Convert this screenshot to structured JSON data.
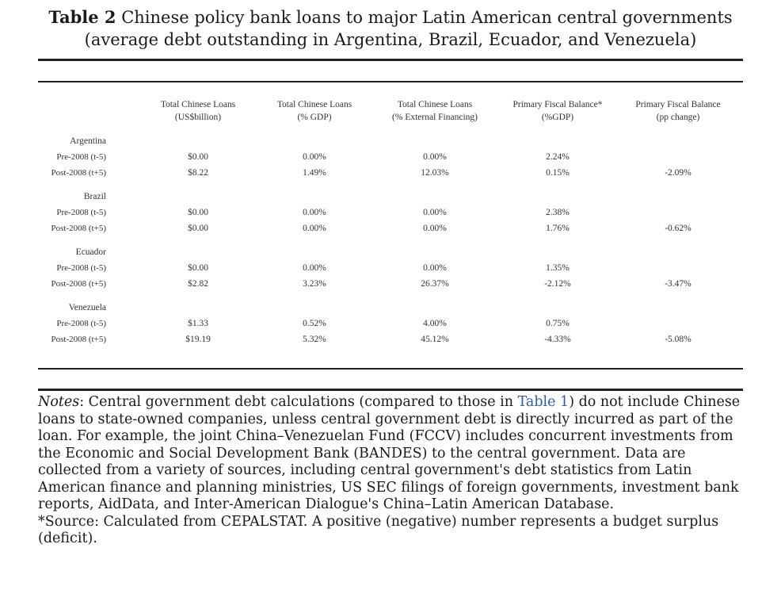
{
  "title": {
    "label": "Table 2",
    "line1": "Chinese policy bank loans to major Latin American central governments",
    "line2": "(average debt outstanding in Argentina, Brazil, Ecuador, and Venezuela)"
  },
  "table": {
    "headers": [
      {
        "line1": "Total Chinese Loans",
        "line2": "(US$billion)"
      },
      {
        "line1": "Total Chinese Loans",
        "line2": "(% GDP)"
      },
      {
        "line1": "Total Chinese Loans",
        "line2": "(% External Financing)"
      },
      {
        "line1": "Primary Fiscal Balance*",
        "line2": "(%GDP)"
      },
      {
        "line1": "Primary Fiscal Balance",
        "line2": "(pp change)"
      }
    ],
    "groups": [
      {
        "name": "Argentina",
        "rows": [
          {
            "label": "Pre-2008 (t-5)",
            "cells": [
              "$0.00",
              "0.00%",
              "0.00%",
              "2.24%",
              ""
            ]
          },
          {
            "label": "Post-2008 (t+5)",
            "cells": [
              "$8.22",
              "1.49%",
              "12.03%",
              "0.15%",
              "-2.09%"
            ]
          }
        ]
      },
      {
        "name": "Brazil",
        "rows": [
          {
            "label": "Pre-2008 (t-5)",
            "cells": [
              "$0.00",
              "0.00%",
              "0.00%",
              "2.38%",
              ""
            ]
          },
          {
            "label": "Post-2008 (t+5)",
            "cells": [
              "$0.00",
              "0.00%",
              "0.00%",
              "1.76%",
              "-0.62%"
            ]
          }
        ]
      },
      {
        "name": "Ecuador",
        "rows": [
          {
            "label": "Pre-2008 (t-5)",
            "cells": [
              "$0.00",
              "0.00%",
              "0.00%",
              "1.35%",
              ""
            ]
          },
          {
            "label": "Post-2008 (t+5)",
            "cells": [
              "$2.82",
              "3.23%",
              "26.37%",
              "-2.12%",
              "-3.47%"
            ]
          }
        ]
      },
      {
        "name": "Venezuela",
        "rows": [
          {
            "label": "Pre-2008 (t-5)",
            "cells": [
              "$1.33",
              "0.52%",
              "4.00%",
              "0.75%",
              ""
            ]
          },
          {
            "label": "Post-2008 (t+5)",
            "cells": [
              "$19.19",
              "5.32%",
              "45.12%",
              "-4.33%",
              "-5.08%"
            ]
          }
        ]
      }
    ]
  },
  "notes": {
    "label": "Notes",
    "text_before_link": ": Central government debt calculations (compared to those in ",
    "link_text": "Table 1",
    "text_after_link": ") do not include Chinese loans to state-owned companies, unless central government debt is directly incurred as part of the loan. For example, the joint China–Venezuelan Fund (FCCV) includes concurrent investments from the Economic and Social Development Bank (BANDES) to the central government. Data are collected from a variety of sources, including central government's debt statistics from Latin American finance and planning ministries, US SEC filings of foreign governments, investment bank reports, AidData, and Inter-American Dialogue's China–Latin American Database.",
    "source": "*Source: Calculated from CEPALSTAT. A positive (negative) number represents a budget surplus (deficit)."
  }
}
